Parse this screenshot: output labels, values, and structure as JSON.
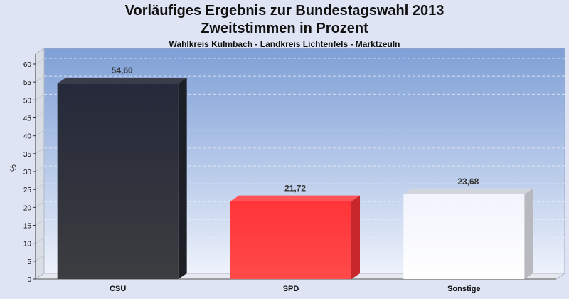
{
  "title": "Vorläufiges Ergebnis zur Bundestagswahl 2013",
  "subtitle": "Zweitstimmen in Prozent",
  "caption": "Wahlkreis Kulmbach - Landkreis Lichtenfels - Marktzeuln",
  "chart_data": {
    "type": "bar",
    "categories": [
      "CSU",
      "SPD",
      "Sonstige"
    ],
    "values": [
      54.6,
      21.72,
      23.68
    ],
    "value_labels": [
      "54,60",
      "21,72",
      "23,68"
    ],
    "colors": [
      "#2e3038",
      "#ff3b3f",
      "#f4f6fd"
    ],
    "ylabel": "%",
    "ylim": [
      0,
      60
    ],
    "yticks": [
      0,
      5,
      10,
      15,
      20,
      25,
      30,
      35,
      40,
      45,
      50,
      55,
      60
    ],
    "grid": true,
    "legend": "none"
  }
}
